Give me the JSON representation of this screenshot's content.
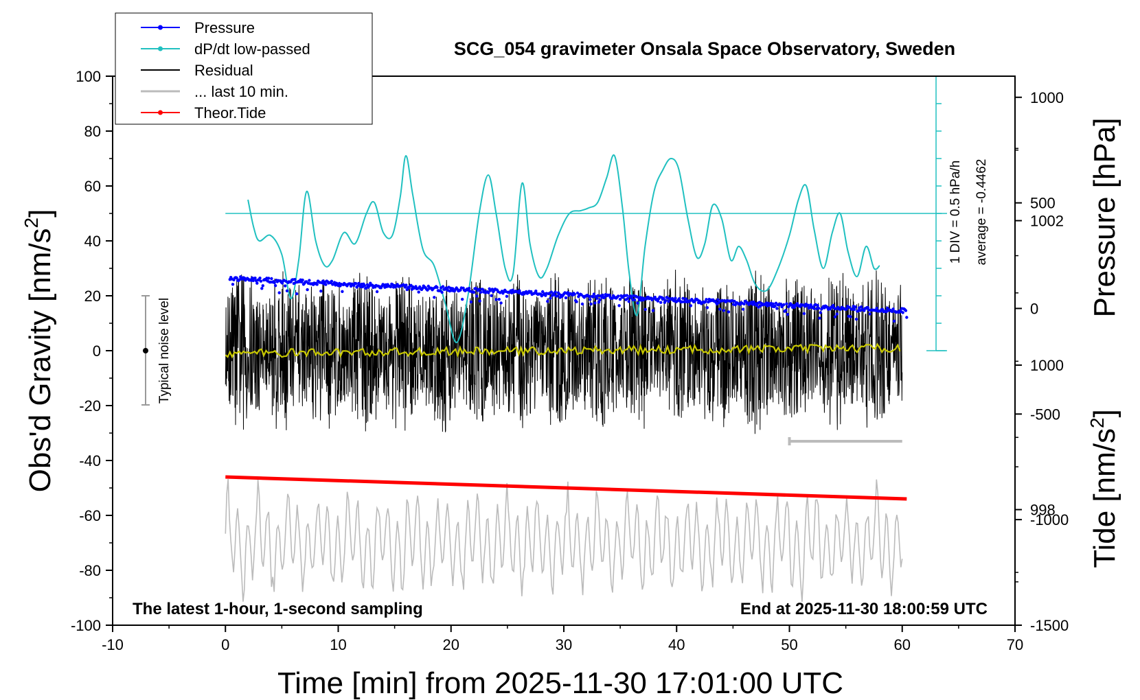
{
  "chart_data": {
    "type": "line",
    "title": "SCG_054 gravimeter Onsala Space Observatory, Sweden",
    "xlabel": "Time [min] from 2025-11-30 17:01:00 UTC",
    "ylabel_left": "Obs'd Gravity [nm/s",
    "ylabel_left_sup": "2",
    "ylabel_left_close": "]",
    "ylabel_pressure": "Pressure [hPa]",
    "ylabel_tide": "Tide [nm/s",
    "ylabel_tide_sup": "2",
    "ylabel_tide_close": "]",
    "xlim": [
      -10,
      70
    ],
    "ylim": [
      -100,
      100
    ],
    "xticks": [
      "-10",
      "0",
      "10",
      "20",
      "30",
      "40",
      "50",
      "60",
      "70"
    ],
    "yticks": [
      "-100",
      "-80",
      "-60",
      "-40",
      "-20",
      "0",
      "20",
      "40",
      "60",
      "80",
      "100"
    ],
    "pressure_axis": {
      "ticks": [
        "998",
        "1000",
        "1002"
      ],
      "range": [
        996.4,
        1004
      ]
    },
    "tide_axis": {
      "ticks": [
        "-1500",
        "-1000",
        "-500",
        "0",
        "500",
        "1000"
      ],
      "range": [
        -1500,
        1100
      ]
    },
    "footer_left": "The latest 1-hour, 1-second sampling",
    "footer_right": "End at 2025-11-30 18:00:59 UTC",
    "noise_label": "Typical noise level",
    "noise_range": [
      -20,
      20
    ],
    "dpdt_scale_label": "1 DIV = 0.5 hPa/h",
    "dpdt_average_label": "average = -0.4462",
    "last10_bar": [
      50,
      60
    ],
    "legend": [
      {
        "label": "Pressure",
        "color": "#0000ff",
        "marker": true
      },
      {
        "label": "dP/dt low-passed",
        "color": "#20c0c0",
        "marker": true
      },
      {
        "label": "Residual",
        "color": "#000000",
        "marker": false
      },
      {
        "label": "... last 10 min.",
        "color": "#bbbbbb",
        "marker": false
      },
      {
        "label": "Theor.Tide",
        "color": "#ff0000",
        "marker": true
      }
    ],
    "series": [
      {
        "name": "Pressure",
        "color": "#0000ff",
        "x_range": [
          0.4,
          60.4
        ],
        "start": 1001.2,
        "end": 1000.75,
        "unit": "hPa"
      },
      {
        "name": "dP/dt low-passed",
        "color": "#20c0c0",
        "baseline": 50,
        "x": [
          2,
          2.5,
          3,
          4,
          5,
          5.8,
          6.5,
          7.2,
          8,
          8.8,
          9.5,
          10.5,
          11.5,
          12.5,
          13.2,
          14,
          14.8,
          15.5,
          16,
          16.6,
          17.5,
          18.5,
          19.5,
          20.5,
          21.5,
          22.5,
          23.3,
          24,
          24.8,
          25.5,
          26.3,
          27,
          27.8,
          28.5,
          29.5,
          30.5,
          31.5,
          32.2,
          33,
          33.8,
          34.5,
          35.2,
          35.8,
          36.5,
          37.2,
          38,
          38.8,
          39.5,
          40.2,
          41,
          41.8,
          42.5,
          43.2,
          44,
          44.8,
          45.5,
          46.2,
          47,
          48,
          49,
          50,
          50.8,
          51.5,
          52.2,
          53,
          53.8,
          54.5,
          55.2,
          56,
          56.8,
          57.5,
          58
        ],
        "y": [
          55,
          45,
          40,
          42,
          35,
          19,
          33,
          58,
          40,
          31,
          33,
          43,
          39,
          50,
          54,
          43,
          42,
          56,
          71,
          57,
          37,
          31,
          17,
          3,
          20,
          50,
          64,
          50,
          30,
          28,
          61,
          39,
          27,
          30,
          42,
          50,
          51,
          52,
          54,
          63,
          71,
          52,
          28,
          13,
          38,
          58,
          66,
          70,
          66,
          48,
          34,
          39,
          53,
          48,
          33,
          38,
          33,
          24,
          22,
          30,
          42,
          55,
          60,
          44,
          30,
          43,
          50,
          36,
          27,
          38,
          30,
          31
        ]
      },
      {
        "name": "Residual",
        "color": "#000000",
        "x_range": [
          0,
          60
        ],
        "amplitude": 25
      },
      {
        "name": "Residual low-passed",
        "color": "#c8c800",
        "x_range": [
          0,
          60
        ],
        "start": -1,
        "end": 1
      },
      {
        "name": "... last 10 min.",
        "color": "#bbbbbb",
        "x_range": [
          0,
          60
        ],
        "center": -70,
        "amplitude": 20
      },
      {
        "name": "Theor.Tide",
        "color": "#ff0000",
        "x_range": [
          0,
          60.4
        ],
        "start": -46,
        "end": -54
      }
    ]
  }
}
